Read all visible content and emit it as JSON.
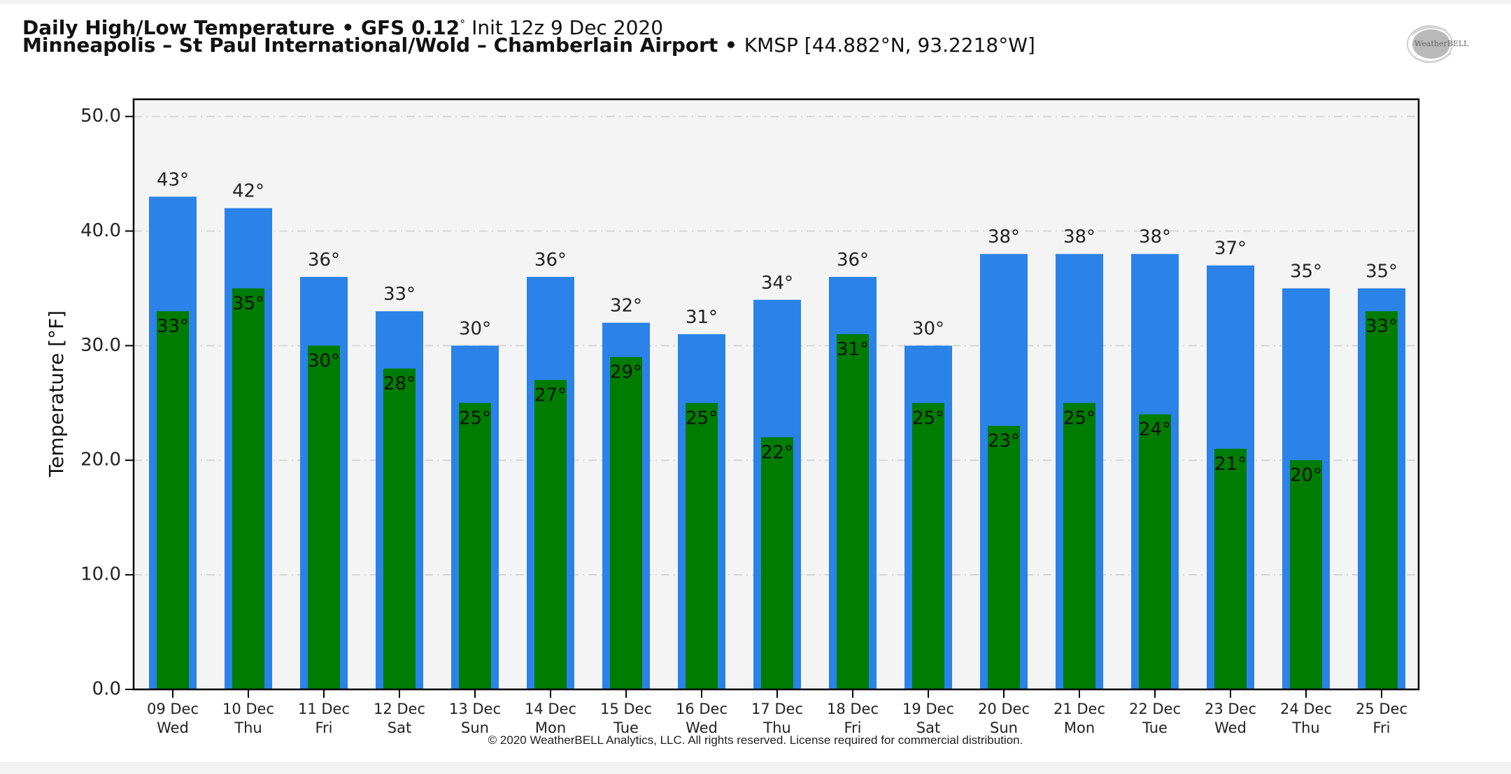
{
  "header": {
    "title_bold": "Daily High/Low Temperature • GFS 0.12",
    "title_degree": "°",
    "title_init": " Init 12z 9 Dec 2020",
    "location_bold": "Minneapolis – St Paul International/Wold – Chamberlain Airport",
    "location_sep": " • ",
    "location_coords": "KMSP [44.882°N, 93.2218°W]"
  },
  "logo": {
    "text": "WeatherBELL",
    "icon": "weatherbell-logo-icon"
  },
  "footer": {
    "copyright": "© 2020 WeatherBELL Analytics, LLC. All rights reserved. License required for commercial distribution."
  },
  "colors": {
    "high": "#2b82e8",
    "low": "#007c00",
    "plot_bg": "#f4f4f4",
    "grid": "#d6d6d6"
  },
  "chart_data": {
    "type": "bar",
    "title": "Daily High/Low Temperature",
    "xlabel": "",
    "ylabel": "Temperature [°F]",
    "ylim": [
      0,
      51.5
    ],
    "yticks": [
      0,
      10,
      20,
      30,
      40,
      50
    ],
    "ytick_labels": [
      "0.0",
      "10.0",
      "20.0",
      "30.0",
      "40.0",
      "50.0"
    ],
    "grid": true,
    "categories": [
      {
        "date": "09 Dec",
        "day": "Wed"
      },
      {
        "date": "10 Dec",
        "day": "Thu"
      },
      {
        "date": "11 Dec",
        "day": "Fri"
      },
      {
        "date": "12 Dec",
        "day": "Sat"
      },
      {
        "date": "13 Dec",
        "day": "Sun"
      },
      {
        "date": "14 Dec",
        "day": "Mon"
      },
      {
        "date": "15 Dec",
        "day": "Tue"
      },
      {
        "date": "16 Dec",
        "day": "Wed"
      },
      {
        "date": "17 Dec",
        "day": "Thu"
      },
      {
        "date": "18 Dec",
        "day": "Fri"
      },
      {
        "date": "19 Dec",
        "day": "Sat"
      },
      {
        "date": "20 Dec",
        "day": "Sun"
      },
      {
        "date": "21 Dec",
        "day": "Mon"
      },
      {
        "date": "22 Dec",
        "day": "Tue"
      },
      {
        "date": "23 Dec",
        "day": "Wed"
      },
      {
        "date": "24 Dec",
        "day": "Thu"
      },
      {
        "date": "25 Dec",
        "day": "Fri"
      }
    ],
    "series": [
      {
        "name": "High",
        "values": [
          43,
          42,
          36,
          33,
          30,
          36,
          32,
          31,
          34,
          36,
          30,
          38,
          38,
          38,
          37,
          35,
          35
        ]
      },
      {
        "name": "Low",
        "values": [
          33,
          35,
          30,
          28,
          25,
          27,
          29,
          25,
          22,
          31,
          25,
          23,
          25,
          24,
          21,
          20,
          33
        ]
      }
    ],
    "value_suffix": "°"
  }
}
